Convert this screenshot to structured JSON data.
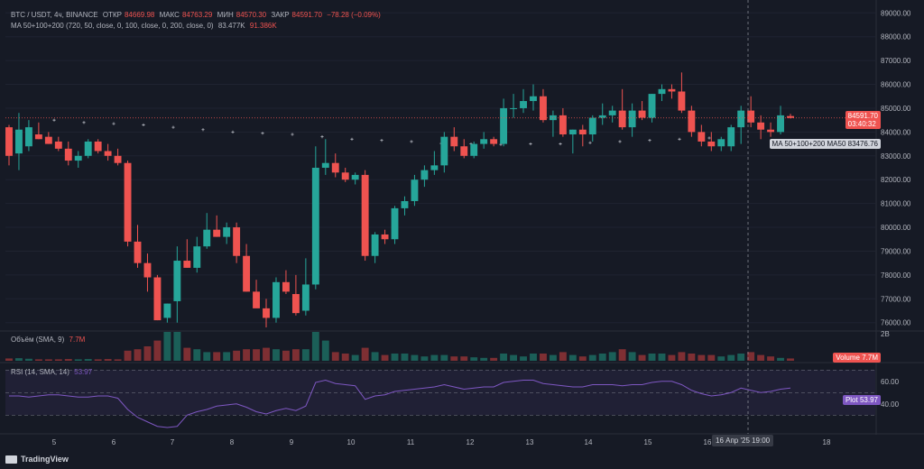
{
  "header": {
    "symbol": "BTC / USDT, 4ч, BINANCE",
    "open_label": "ОТКР",
    "open": "84669.98",
    "high_label": "МАКС",
    "high": "84763.29",
    "low_label": "МИН",
    "low": "84570.30",
    "close_label": "ЗАКР",
    "close": "84591.70",
    "change": "−78.28 (−0.09%)"
  },
  "ma_legend": {
    "label": "MA 50+100+200 (720, 50, close, 0, 100, close, 0, 200, close, 0)",
    "value1": "83.477K",
    "value2": "91.386K"
  },
  "volume_legend": {
    "label": "Объём (SMA, 9)",
    "value": "7.7M"
  },
  "rsi_legend": {
    "label": "RSI (14, SMA, 14)",
    "value": "53.97"
  },
  "price_axis": {
    "ticks": [
      "89000.00",
      "88000.00",
      "87000.00",
      "86000.00",
      "85000.00",
      "84000.00",
      "83000.00",
      "82000.00",
      "81000.00",
      "80000.00",
      "79000.00",
      "78000.00",
      "77000.00",
      "76000.00"
    ]
  },
  "current_price": {
    "price": "84591.70",
    "countdown": "03:40:32"
  },
  "ma_tag": {
    "label": "MA 50+100+200 MA50",
    "value": "83476.76"
  },
  "volume_tag": {
    "label": "Volume",
    "value": "7.7M",
    "axis": "2B"
  },
  "rsi_tag": {
    "label": "Plot",
    "value": "53.97",
    "ticks": [
      "60.00",
      "40.00"
    ]
  },
  "time_axis": {
    "ticks": [
      "5",
      "6",
      "7",
      "8",
      "9",
      "10",
      "11",
      "12",
      "13",
      "14",
      "15",
      "16",
      "18"
    ]
  },
  "crosshair_label": "16 Апр '25   19:00",
  "branding": {
    "name": "TradingView"
  },
  "colors": {
    "up": "#26a69a",
    "down": "#ef5350",
    "ma": "#b2b5be",
    "rsi": "#7e57c2",
    "background": "#161a25"
  },
  "chart_data": {
    "type": "candlestick",
    "candles": [
      {
        "o": 84200,
        "h": 84300,
        "l": 82600,
        "c": 83000
      },
      {
        "o": 83100,
        "h": 84800,
        "l": 82400,
        "c": 84100
      },
      {
        "o": 83400,
        "h": 84500,
        "l": 83200,
        "c": 84200
      },
      {
        "o": 83900,
        "h": 84400,
        "l": 83700,
        "c": 83700
      },
      {
        "o": 83800,
        "h": 84000,
        "l": 83500,
        "c": 83500
      },
      {
        "o": 83600,
        "h": 83800,
        "l": 83200,
        "c": 83300
      },
      {
        "o": 83300,
        "h": 83600,
        "l": 82600,
        "c": 82800
      },
      {
        "o": 82800,
        "h": 83200,
        "l": 82500,
        "c": 83000
      },
      {
        "o": 83000,
        "h": 83700,
        "l": 82900,
        "c": 83600
      },
      {
        "o": 83600,
        "h": 83700,
        "l": 83100,
        "c": 83200
      },
      {
        "o": 83200,
        "h": 83500,
        "l": 82800,
        "c": 83000
      },
      {
        "o": 83000,
        "h": 83300,
        "l": 82600,
        "c": 82700
      },
      {
        "o": 82700,
        "h": 82800,
        "l": 79200,
        "c": 79400
      },
      {
        "o": 79400,
        "h": 80100,
        "l": 78300,
        "c": 78500
      },
      {
        "o": 78500,
        "h": 78900,
        "l": 77300,
        "c": 77900
      },
      {
        "o": 77900,
        "h": 78000,
        "l": 76100,
        "c": 76100
      },
      {
        "o": 76200,
        "h": 76800,
        "l": 76000,
        "c": 76800
      },
      {
        "o": 76900,
        "h": 79200,
        "l": 76000,
        "c": 78600
      },
      {
        "o": 78600,
        "h": 79500,
        "l": 78300,
        "c": 78300
      },
      {
        "o": 78300,
        "h": 79600,
        "l": 78100,
        "c": 79200
      },
      {
        "o": 79200,
        "h": 80600,
        "l": 79100,
        "c": 79900
      },
      {
        "o": 79900,
        "h": 80500,
        "l": 79600,
        "c": 79600
      },
      {
        "o": 79600,
        "h": 80200,
        "l": 79300,
        "c": 80000
      },
      {
        "o": 80000,
        "h": 80200,
        "l": 78500,
        "c": 78800
      },
      {
        "o": 78800,
        "h": 79300,
        "l": 77300,
        "c": 77300
      },
      {
        "o": 77300,
        "h": 77800,
        "l": 76700,
        "c": 76600
      },
      {
        "o": 76600,
        "h": 77000,
        "l": 75800,
        "c": 76200
      },
      {
        "o": 76200,
        "h": 77900,
        "l": 76000,
        "c": 77700
      },
      {
        "o": 77700,
        "h": 78200,
        "l": 77200,
        "c": 77300
      },
      {
        "o": 77200,
        "h": 78000,
        "l": 76300,
        "c": 76400
      },
      {
        "o": 76500,
        "h": 78700,
        "l": 76300,
        "c": 77600
      },
      {
        "o": 77600,
        "h": 83400,
        "l": 77400,
        "c": 82500
      },
      {
        "o": 82500,
        "h": 83700,
        "l": 82200,
        "c": 82700
      },
      {
        "o": 82700,
        "h": 83100,
        "l": 82100,
        "c": 82300
      },
      {
        "o": 82300,
        "h": 82500,
        "l": 81900,
        "c": 82000
      },
      {
        "o": 82000,
        "h": 82300,
        "l": 81800,
        "c": 82200
      },
      {
        "o": 82200,
        "h": 82400,
        "l": 78600,
        "c": 78800
      },
      {
        "o": 78800,
        "h": 79800,
        "l": 78500,
        "c": 79700
      },
      {
        "o": 79700,
        "h": 79900,
        "l": 79300,
        "c": 79500
      },
      {
        "o": 79500,
        "h": 80900,
        "l": 79300,
        "c": 80800
      },
      {
        "o": 80800,
        "h": 81300,
        "l": 80500,
        "c": 81100
      },
      {
        "o": 81100,
        "h": 82200,
        "l": 80900,
        "c": 82000
      },
      {
        "o": 82000,
        "h": 82600,
        "l": 81700,
        "c": 82400
      },
      {
        "o": 82400,
        "h": 83200,
        "l": 82200,
        "c": 82600
      },
      {
        "o": 82600,
        "h": 84000,
        "l": 82300,
        "c": 83800
      },
      {
        "o": 83800,
        "h": 84200,
        "l": 83200,
        "c": 83400
      },
      {
        "o": 83400,
        "h": 83700,
        "l": 82900,
        "c": 83000
      },
      {
        "o": 83000,
        "h": 83600,
        "l": 82900,
        "c": 83500
      },
      {
        "o": 83500,
        "h": 84000,
        "l": 83300,
        "c": 83700
      },
      {
        "o": 83700,
        "h": 83800,
        "l": 83400,
        "c": 83500
      },
      {
        "o": 83500,
        "h": 85400,
        "l": 83400,
        "c": 85000
      },
      {
        "o": 85000,
        "h": 85600,
        "l": 84600,
        "c": 85000
      },
      {
        "o": 85000,
        "h": 85800,
        "l": 84800,
        "c": 85300
      },
      {
        "o": 85300,
        "h": 86000,
        "l": 84900,
        "c": 85500
      },
      {
        "o": 85500,
        "h": 85800,
        "l": 84400,
        "c": 84500
      },
      {
        "o": 84500,
        "h": 84900,
        "l": 83800,
        "c": 84700
      },
      {
        "o": 84700,
        "h": 85000,
        "l": 83800,
        "c": 83900
      },
      {
        "o": 83900,
        "h": 84100,
        "l": 83100,
        "c": 84100
      },
      {
        "o": 84100,
        "h": 84300,
        "l": 83400,
        "c": 83900
      },
      {
        "o": 83900,
        "h": 84700,
        "l": 83600,
        "c": 84600
      },
      {
        "o": 84600,
        "h": 85200,
        "l": 84300,
        "c": 84700
      },
      {
        "o": 84700,
        "h": 85100,
        "l": 84400,
        "c": 84900
      },
      {
        "o": 84900,
        "h": 85800,
        "l": 84100,
        "c": 84200
      },
      {
        "o": 84200,
        "h": 85200,
        "l": 83800,
        "c": 84900
      },
      {
        "o": 84900,
        "h": 85300,
        "l": 84500,
        "c": 84600
      },
      {
        "o": 84600,
        "h": 85600,
        "l": 84400,
        "c": 85600
      },
      {
        "o": 85600,
        "h": 86000,
        "l": 85300,
        "c": 85800
      },
      {
        "o": 85800,
        "h": 86000,
        "l": 85400,
        "c": 85700
      },
      {
        "o": 85700,
        "h": 86500,
        "l": 84800,
        "c": 84900
      },
      {
        "o": 84900,
        "h": 85100,
        "l": 83800,
        "c": 84000
      },
      {
        "o": 84000,
        "h": 84300,
        "l": 83400,
        "c": 83600
      },
      {
        "o": 83600,
        "h": 84000,
        "l": 83200,
        "c": 83400
      },
      {
        "o": 83400,
        "h": 83800,
        "l": 83200,
        "c": 83700
      },
      {
        "o": 83400,
        "h": 84300,
        "l": 83200,
        "c": 84200
      },
      {
        "o": 84200,
        "h": 85100,
        "l": 83500,
        "c": 84900
      },
      {
        "o": 84900,
        "h": 85500,
        "l": 84200,
        "c": 84400
      },
      {
        "o": 84400,
        "h": 84700,
        "l": 83700,
        "c": 84100
      },
      {
        "o": 84100,
        "h": 84400,
        "l": 83800,
        "c": 84000
      },
      {
        "o": 84000,
        "h": 85100,
        "l": 83900,
        "c": 84700
      },
      {
        "o": 84670,
        "h": 84763,
        "l": 84570,
        "c": 84592
      }
    ],
    "ma_points": [
      84500,
      84400,
      84350,
      84300,
      84200,
      84100,
      84000,
      83950,
      83900,
      83800,
      83700,
      83650,
      83600,
      83520,
      83500,
      83480,
      83500,
      83500,
      83550,
      83600,
      83650,
      83700,
      83750
    ],
    "volume": [
      0.08,
      0.09,
      0.07,
      0.05,
      0.05,
      0.05,
      0.06,
      0.05,
      0.06,
      0.05,
      0.06,
      0.05,
      0.35,
      0.4,
      0.5,
      0.7,
      1.0,
      1.0,
      0.45,
      0.4,
      0.3,
      0.3,
      0.3,
      0.35,
      0.4,
      0.4,
      0.45,
      0.4,
      0.35,
      0.4,
      0.4,
      1.0,
      0.7,
      0.3,
      0.25,
      0.2,
      0.45,
      0.3,
      0.2,
      0.25,
      0.25,
      0.2,
      0.15,
      0.2,
      0.2,
      0.15,
      0.15,
      0.12,
      0.1,
      0.1,
      0.25,
      0.2,
      0.15,
      0.25,
      0.25,
      0.2,
      0.3,
      0.2,
      0.15,
      0.2,
      0.25,
      0.3,
      0.4,
      0.3,
      0.2,
      0.25,
      0.25,
      0.2,
      0.3,
      0.25,
      0.2,
      0.2,
      0.15,
      0.2,
      0.25,
      0.3,
      0.2,
      0.15,
      0.1,
      0.08
    ],
    "rsi": [
      47,
      47,
      46,
      47,
      48,
      48,
      47,
      46,
      46,
      47,
      47,
      45,
      35,
      28,
      24,
      20,
      19,
      20,
      30,
      33,
      35,
      38,
      39,
      40,
      37,
      33,
      31,
      34,
      36,
      34,
      38,
      59,
      61,
      58,
      57,
      56,
      44,
      47,
      48,
      51,
      52,
      53,
      54,
      55,
      57,
      55,
      53,
      54,
      55,
      55,
      59,
      60,
      61,
      61,
      58,
      57,
      56,
      55,
      55,
      57,
      57,
      57,
      56,
      57,
      57,
      59,
      60,
      60,
      57,
      52,
      49,
      47,
      48,
      50,
      54,
      52,
      50,
      51,
      53,
      54
    ],
    "rsi_ticks": [
      60,
      40
    ],
    "ylim": [
      75800,
      89200
    ]
  }
}
